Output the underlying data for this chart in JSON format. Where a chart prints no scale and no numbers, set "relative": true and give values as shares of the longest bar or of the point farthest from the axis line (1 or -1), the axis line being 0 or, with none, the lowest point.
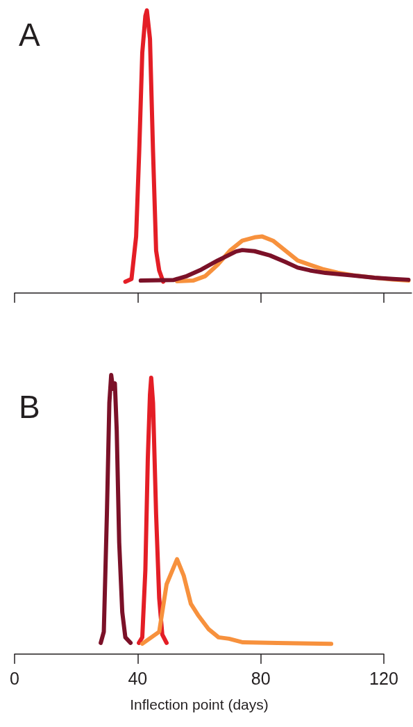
{
  "chart_data": [
    {
      "type": "line",
      "title": "A",
      "relative": true,
      "xlim": [
        0,
        129
      ],
      "xticks": [
        0,
        40,
        80,
        120
      ],
      "tick_labels": false,
      "grid": false,
      "marker": "none",
      "line_style": "solid",
      "series": [
        {
          "color": "#e41e26",
          "x": [
            36,
            38,
            39.5,
            40.5,
            41.5,
            42.5,
            43,
            44,
            45,
            46,
            47,
            48.3
          ],
          "values": [
            0.04,
            0.05,
            0.2,
            0.5,
            0.85,
            0.98,
            1.0,
            0.9,
            0.5,
            0.15,
            0.08,
            0.04
          ]
        },
        {
          "color": "#f7913d",
          "x": [
            52.8,
            58,
            62,
            66,
            70,
            74,
            78,
            80.5,
            84,
            88,
            92,
            96,
            100,
            105,
            110,
            117,
            123,
            128
          ],
          "values": [
            0.042,
            0.044,
            0.06,
            0.1,
            0.15,
            0.185,
            0.197,
            0.2,
            0.185,
            0.15,
            0.115,
            0.1,
            0.085,
            0.072,
            0.063,
            0.054,
            0.0476,
            0.044
          ]
        },
        {
          "color": "#7b1128",
          "x": [
            41,
            51.6,
            56,
            60.7,
            66,
            72,
            74,
            78,
            83,
            88,
            92,
            96,
            101,
            110,
            117,
            123,
            128
          ],
          "values": [
            0.044,
            0.046,
            0.06,
            0.083,
            0.115,
            0.147,
            0.152,
            0.148,
            0.133,
            0.11,
            0.09,
            0.08,
            0.071,
            0.062,
            0.054,
            0.05,
            0.047
          ]
        }
      ]
    },
    {
      "type": "line",
      "title": "B",
      "relative": true,
      "xlim": [
        0,
        120
      ],
      "xticks": [
        0,
        40,
        80,
        120
      ],
      "xlabel": "Inflection point (days)",
      "grid": false,
      "marker": "none",
      "line_style": "solid",
      "series": [
        {
          "color": "#7b1128",
          "x": [
            28,
            29,
            30,
            30.8,
            31.4,
            32,
            32.6,
            33.2,
            34,
            35,
            36,
            37.7
          ],
          "values": [
            0.04,
            0.08,
            0.5,
            0.9,
            1.0,
            0.95,
            0.97,
            0.8,
            0.4,
            0.15,
            0.06,
            0.04
          ]
        },
        {
          "color": "#e41e26",
          "x": [
            40.4,
            41.5,
            42.5,
            43.3,
            44,
            44.4,
            45,
            46,
            47,
            48,
            49.4
          ],
          "values": [
            0.04,
            0.06,
            0.3,
            0.7,
            0.93,
            0.99,
            0.9,
            0.5,
            0.2,
            0.07,
            0.04
          ]
        },
        {
          "color": "#f7913d",
          "x": [
            41.5,
            47,
            49.4,
            52.8,
            55,
            57.3,
            59.6,
            63,
            66.3,
            69.7,
            74.2,
            85.5,
            102.9
          ],
          "values": [
            0.037,
            0.08,
            0.25,
            0.34,
            0.28,
            0.18,
            0.14,
            0.09,
            0.06,
            0.055,
            0.042,
            0.04,
            0.037
          ]
        }
      ]
    }
  ]
}
